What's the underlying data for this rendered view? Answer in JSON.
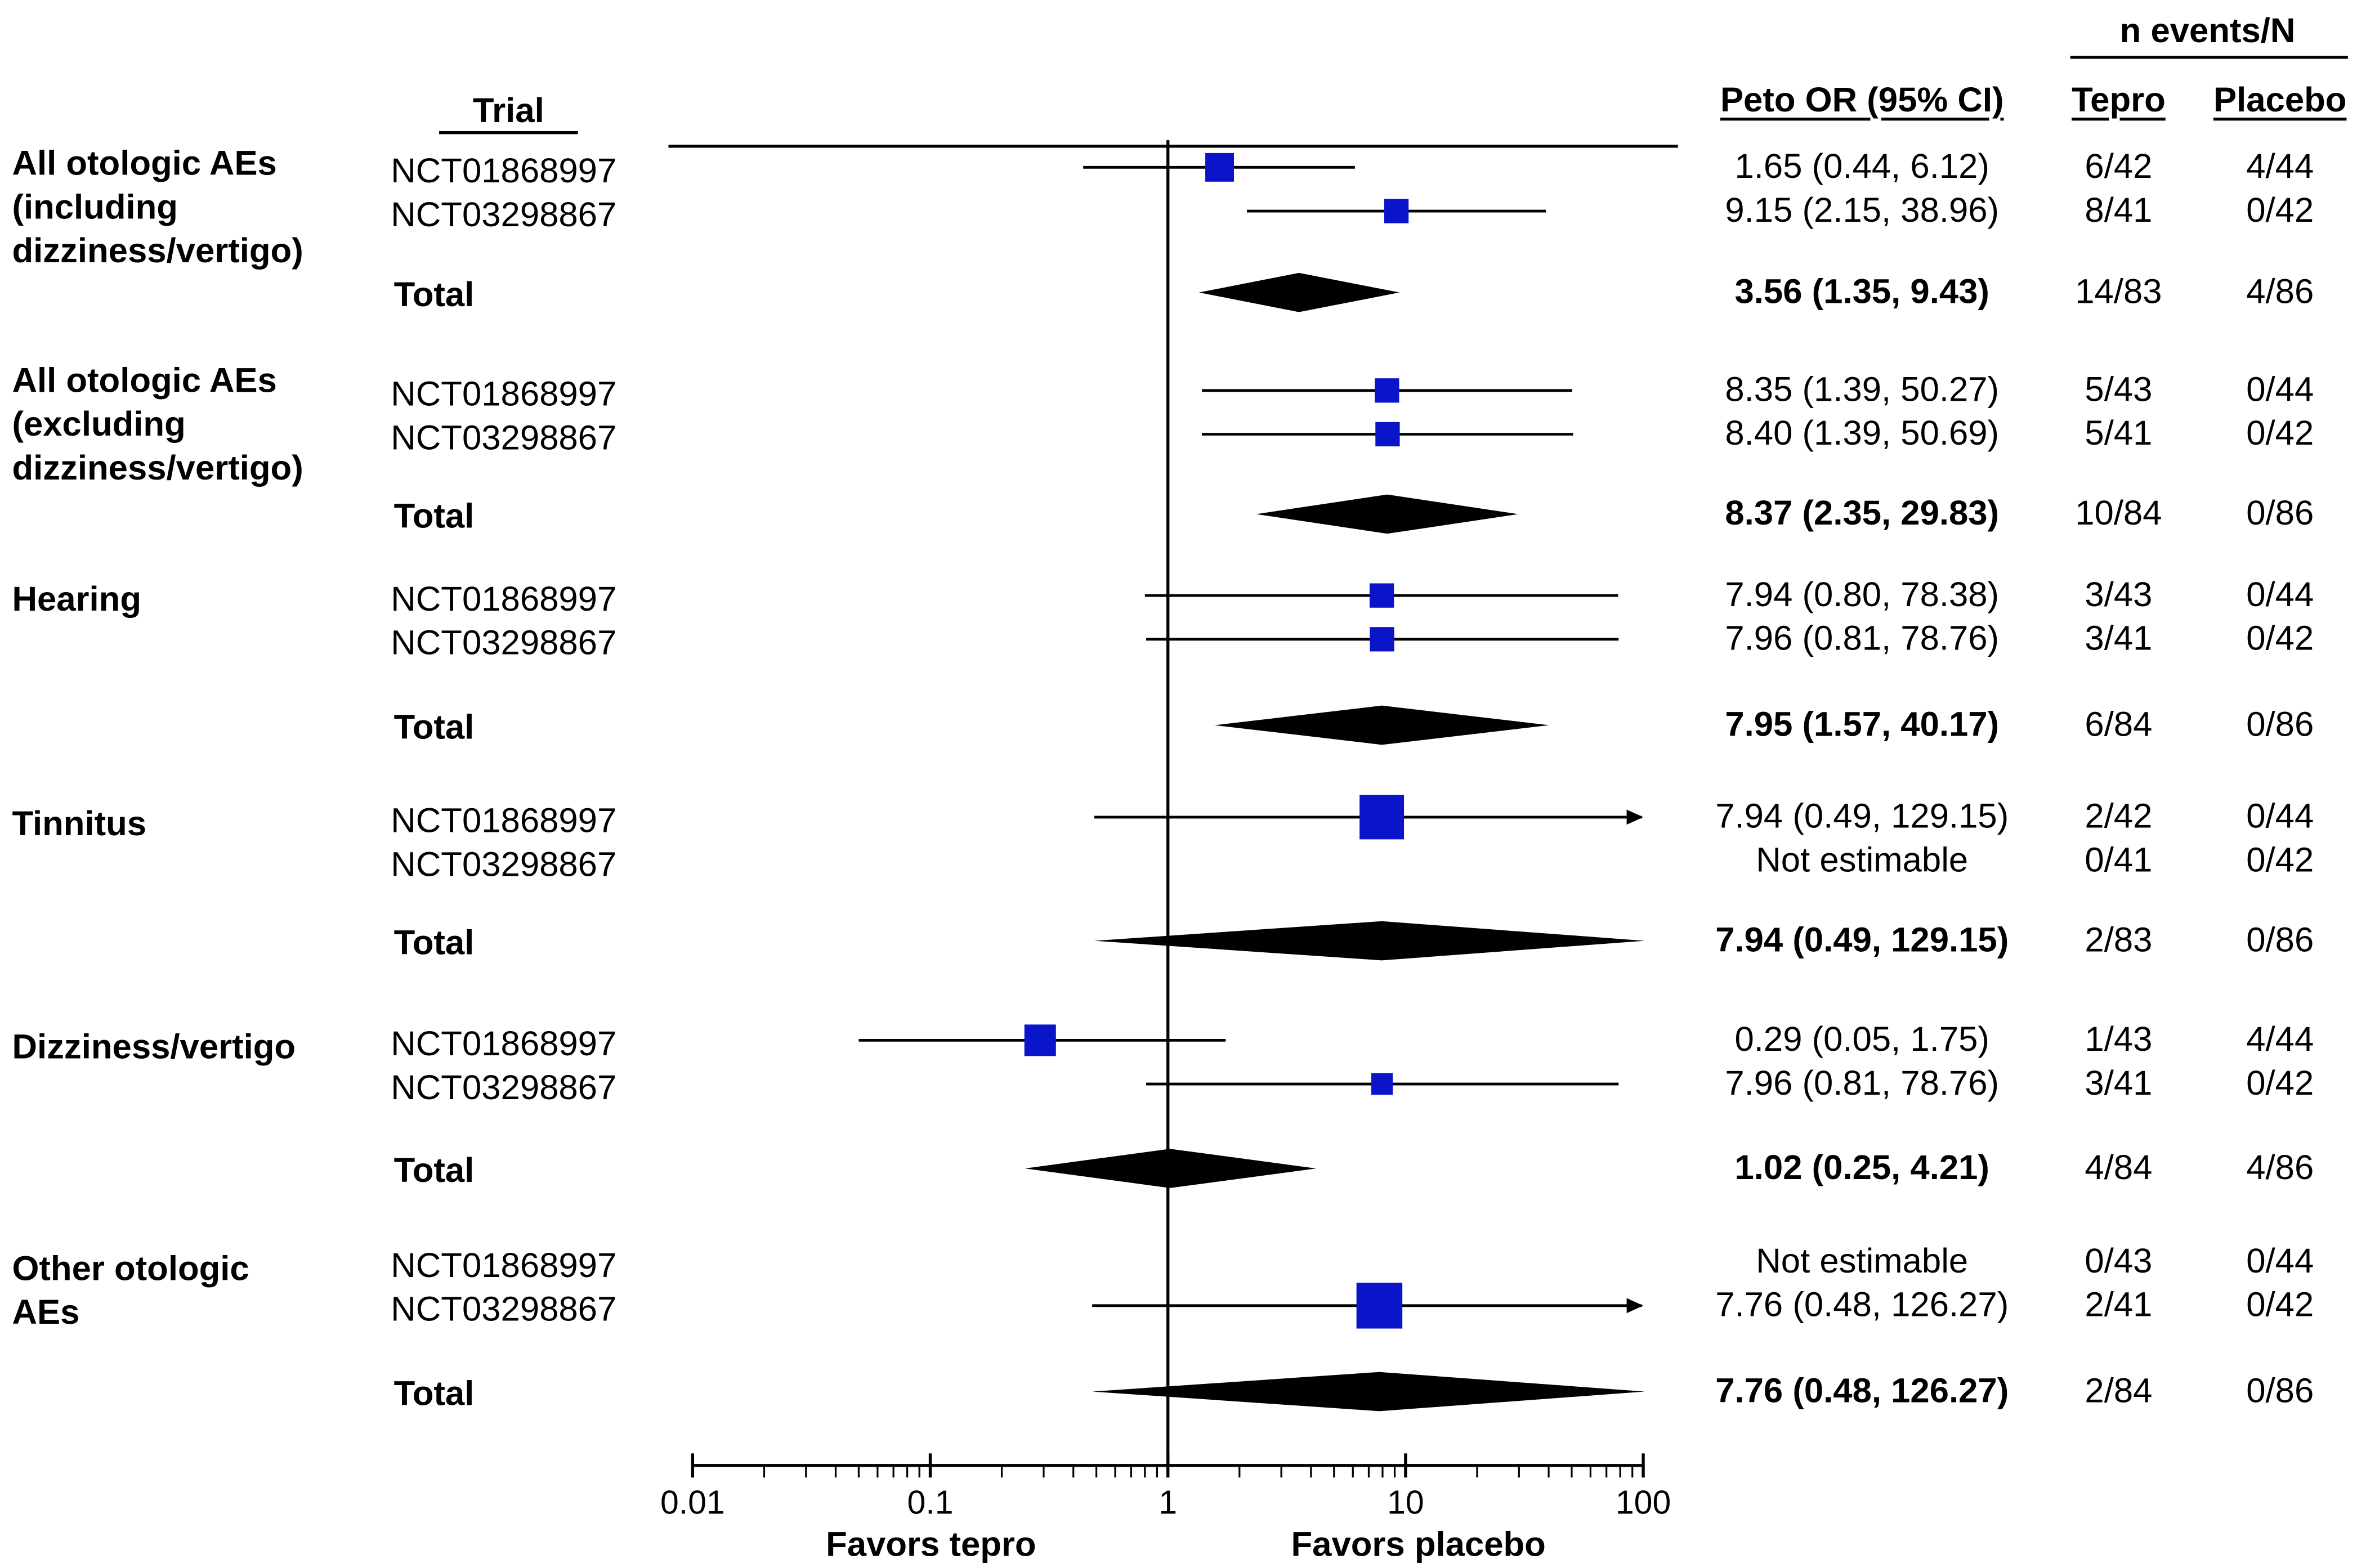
{
  "chart_data": {
    "type": "forest",
    "xscale": "log",
    "xlim": [
      0.01,
      100
    ],
    "x_ticks": [
      "0.01",
      "0.1",
      "1",
      "10",
      "100"
    ],
    "x_tick_values": [
      0.01,
      0.1,
      1,
      10,
      100
    ],
    "reference_line": 1,
    "favors_left": "Favors tepro",
    "favors_right": "Favors placebo",
    "headers": {
      "trial": "Trial",
      "or": "Peto OR (95% CI)",
      "events": "n events/N",
      "tepro": "Tepro",
      "placebo": "Placebo"
    },
    "groups": [
      {
        "label": [
          "All otologic AEs",
          "(including",
          "dizziness/vertigo)"
        ],
        "rows": [
          {
            "trial": "NCT01868997",
            "or": 1.65,
            "lo": 0.44,
            "hi": 6.12,
            "size": 1.0,
            "ci_text": "1.65 (0.44, 6.12)",
            "tepro": "6/42",
            "placebo": "4/44"
          },
          {
            "trial": "NCT03298867",
            "or": 9.15,
            "lo": 2.15,
            "hi": 38.96,
            "size": 0.85,
            "ci_text": "9.15 (2.15, 38.96)",
            "tepro": "8/41",
            "placebo": "0/42"
          }
        ],
        "total": {
          "label": "Total",
          "or": 3.56,
          "lo": 1.35,
          "hi": 9.43,
          "ci_text": "3.56 (1.35, 9.43)",
          "tepro": "14/83",
          "placebo": "4/86"
        }
      },
      {
        "label": [
          "All otologic AEs",
          "(excluding",
          "dizziness/vertigo)"
        ],
        "rows": [
          {
            "trial": "NCT01868997",
            "or": 8.35,
            "lo": 1.39,
            "hi": 50.27,
            "size": 0.85,
            "ci_text": "8.35 (1.39, 50.27)",
            "tepro": "5/43",
            "placebo": "0/44"
          },
          {
            "trial": "NCT03298867",
            "or": 8.4,
            "lo": 1.39,
            "hi": 50.69,
            "size": 0.85,
            "ci_text": "8.40 (1.39, 50.69)",
            "tepro": "5/41",
            "placebo": "0/42"
          }
        ],
        "total": {
          "label": "Total",
          "or": 8.37,
          "lo": 2.35,
          "hi": 29.83,
          "ci_text": "8.37 (2.35, 29.83)",
          "tepro": "10/84",
          "placebo": "0/86"
        }
      },
      {
        "label": [
          "Hearing"
        ],
        "rows": [
          {
            "trial": "NCT01868997",
            "or": 7.94,
            "lo": 0.8,
            "hi": 78.38,
            "size": 0.85,
            "ci_text": "7.94 (0.80, 78.38)",
            "tepro": "3/43",
            "placebo": "0/44"
          },
          {
            "trial": "NCT03298867",
            "or": 7.96,
            "lo": 0.81,
            "hi": 78.76,
            "size": 0.85,
            "ci_text": "7.96 (0.81, 78.76)",
            "tepro": "3/41",
            "placebo": "0/42"
          }
        ],
        "total": {
          "label": "Total",
          "or": 7.95,
          "lo": 1.57,
          "hi": 40.17,
          "ci_text": "7.95 (1.57, 40.17)",
          "tepro": "6/84",
          "placebo": "0/86"
        }
      },
      {
        "label": [
          "Tinnitus"
        ],
        "rows": [
          {
            "trial": "NCT01868997",
            "or": 7.94,
            "lo": 0.49,
            "hi": 129.15,
            "size": 1.55,
            "ci_text": "7.94 (0.49, 129.15)",
            "tepro": "2/42",
            "placebo": "0/44"
          },
          {
            "trial": "NCT03298867",
            "or": null,
            "lo": null,
            "hi": null,
            "size": 0,
            "ci_text": "Not estimable",
            "tepro": "0/41",
            "placebo": "0/42"
          }
        ],
        "total": {
          "label": "Total",
          "or": 7.94,
          "lo": 0.49,
          "hi": 129.15,
          "ci_text": "7.94 (0.49, 129.15)",
          "tepro": "2/83",
          "placebo": "0/86"
        }
      },
      {
        "label": [
          "Dizziness/vertigo"
        ],
        "rows": [
          {
            "trial": "NCT01868997",
            "or": 0.29,
            "lo": 0.05,
            "hi": 1.75,
            "size": 1.1,
            "ci_text": "0.29 (0.05, 1.75)",
            "tepro": "1/43",
            "placebo": "4/44"
          },
          {
            "trial": "NCT03298867",
            "or": 7.96,
            "lo": 0.81,
            "hi": 78.76,
            "size": 0.75,
            "ci_text": "7.96 (0.81, 78.76)",
            "tepro": "3/41",
            "placebo": "0/42"
          }
        ],
        "total": {
          "label": "Total",
          "or": 1.02,
          "lo": 0.25,
          "hi": 4.21,
          "ci_text": "1.02 (0.25, 4.21)",
          "tepro": "4/84",
          "placebo": "4/86"
        }
      },
      {
        "label": [
          "Other otologic",
          "AEs"
        ],
        "rows": [
          {
            "trial": "NCT01868997",
            "or": null,
            "lo": null,
            "hi": null,
            "size": 0,
            "ci_text": "Not estimable",
            "tepro": "0/43",
            "placebo": "0/44"
          },
          {
            "trial": "NCT03298867",
            "or": 7.76,
            "lo": 0.48,
            "hi": 126.27,
            "size": 1.6,
            "ci_text": "7.76 (0.48, 126.27)",
            "tepro": "2/41",
            "placebo": "0/42"
          }
        ],
        "total": {
          "label": "Total",
          "or": 7.76,
          "lo": 0.48,
          "hi": 126.27,
          "ci_text": "7.76 (0.48, 126.27)",
          "tepro": "2/84",
          "placebo": "0/86"
        }
      }
    ],
    "colors": {
      "square": "#0a14c8",
      "diamond": "#000000",
      "line": "#000000"
    }
  }
}
